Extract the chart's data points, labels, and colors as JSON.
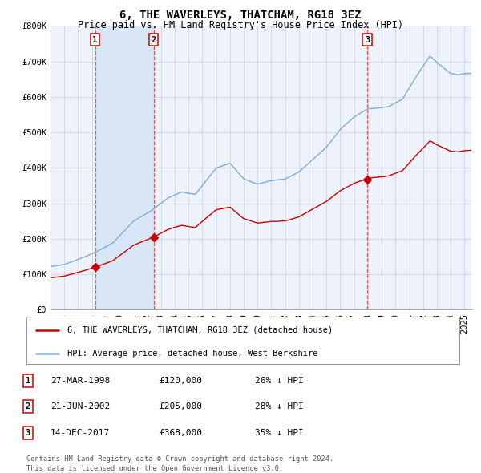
{
  "title": "6, THE WAVERLEYS, THATCHAM, RG18 3EZ",
  "subtitle": "Price paid vs. HM Land Registry's House Price Index (HPI)",
  "ylim": [
    0,
    800000
  ],
  "yticks": [
    0,
    100000,
    200000,
    300000,
    400000,
    500000,
    600000,
    700000,
    800000
  ],
  "ytick_labels": [
    "£0",
    "£100K",
    "£200K",
    "£300K",
    "£400K",
    "£500K",
    "£600K",
    "£700K",
    "£800K"
  ],
  "xlim": [
    1995.0,
    2025.5
  ],
  "transactions": [
    {
      "date_num": 1998.23,
      "price": 120000,
      "label": "1"
    },
    {
      "date_num": 2002.47,
      "price": 205000,
      "label": "2"
    },
    {
      "date_num": 2017.95,
      "price": 368000,
      "label": "3"
    }
  ],
  "legend_red": "6, THE WAVERLEYS, THATCHAM, RG18 3EZ (detached house)",
  "legend_blue": "HPI: Average price, detached house, West Berkshire",
  "table_rows": [
    {
      "num": "1",
      "date": "27-MAR-1998",
      "price": "£120,000",
      "note": "26% ↓ HPI"
    },
    {
      "num": "2",
      "date": "21-JUN-2002",
      "price": "£205,000",
      "note": "28% ↓ HPI"
    },
    {
      "num": "3",
      "date": "14-DEC-2017",
      "price": "£368,000",
      "note": "35% ↓ HPI"
    }
  ],
  "footer1": "Contains HM Land Registry data © Crown copyright and database right 2024.",
  "footer2": "This data is licensed under the Open Government Licence v3.0.",
  "bg_color": "#eef2fb",
  "grid_color": "#c8cfe0",
  "red_color": "#cc0000",
  "blue_color": "#7aaedb",
  "highlight_bg": "#d8e6f5",
  "dashed_red": "#dd4444",
  "title_fontsize": 10,
  "subtitle_fontsize": 8.5,
  "tick_fontsize": 7.5,
  "legend_fontsize": 7.5,
  "table_fontsize": 8
}
